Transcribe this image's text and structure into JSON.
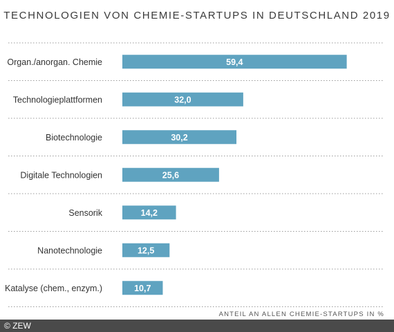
{
  "chart_data": {
    "type": "bar",
    "orientation": "horizontal",
    "title": "TECHNOLOGIEN VON CHEMIE-STARTUPS IN DEUTSCHLAND 2019",
    "xlabel": "ANTEIL AN ALLEN CHEMIE-STARTUPS IN %",
    "ylabel": "",
    "categories": [
      "Organ./anorgan. Chemie",
      "Technologieplattformen",
      "Biotechnologie",
      "Digitale Technologien",
      "Sensorik",
      "Nanotechnologie",
      "Katalyse (chem., enzym.)"
    ],
    "values": [
      59.4,
      32.0,
      30.2,
      25.6,
      14.2,
      12.5,
      10.7
    ],
    "value_labels": [
      "59,4",
      "32,0",
      "30,2",
      "25,6",
      "14,2",
      "12,5",
      "10,7"
    ],
    "xlim": [
      0,
      70
    ],
    "grid": "dotted-horizontal",
    "legend": "none",
    "bar_color": "#5fa3c0"
  },
  "footer": {
    "copyright": "© ZEW"
  }
}
